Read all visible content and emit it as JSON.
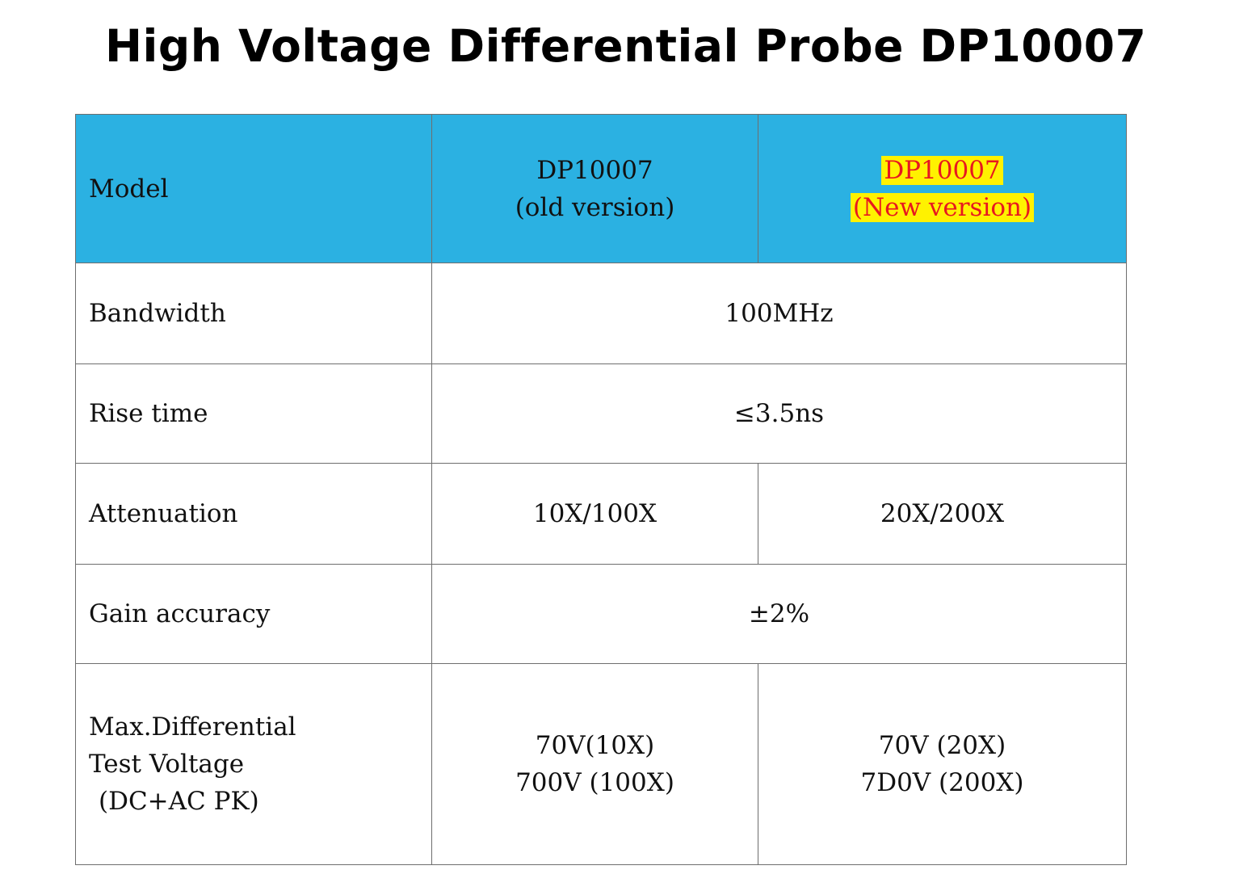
{
  "title": "High Voltage Differential Probe DP10007",
  "colors": {
    "header_bg": "#2bb1e2",
    "highlight_bg": "#fff200",
    "highlight_text": "#e8171f"
  },
  "table": {
    "header": {
      "label": "Model",
      "old": {
        "line1": "DP10007",
        "line2": "(old version)"
      },
      "new": {
        "line1": "DP10007",
        "line2": "(New version)"
      }
    },
    "rows": {
      "bandwidth": {
        "label": "Bandwidth",
        "value": "100MHz"
      },
      "rise_time": {
        "label": "Rise time",
        "value": "≤3.5ns"
      },
      "attenuation": {
        "label": "Attenuation",
        "old": "10X/100X",
        "new": "20X/200X"
      },
      "gain_accuracy": {
        "label": "Gain accuracy",
        "value": "±2%"
      },
      "max_voltage": {
        "label": [
          "Max.Differential",
          "Test Voltage",
          "(DC+AC PK)"
        ],
        "old": [
          "70V(10X)",
          "700V  (100X)"
        ],
        "new": [
          "70V  (20X)",
          "7D0V  (200X)"
        ]
      }
    }
  }
}
